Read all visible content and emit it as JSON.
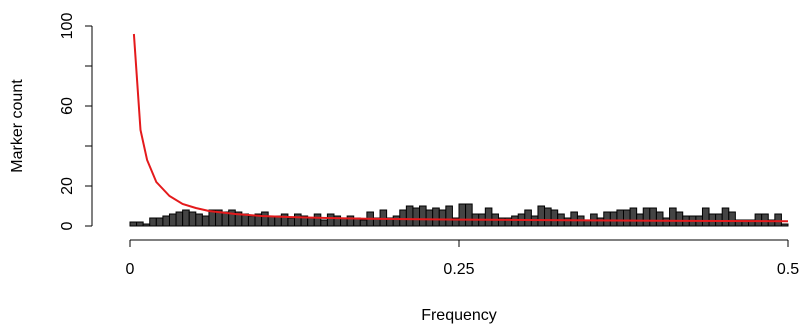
{
  "chart_data": {
    "type": "bar",
    "xlabel": "Frequency",
    "ylabel": "Marker count",
    "xlim": [
      0,
      0.5
    ],
    "ylim": [
      0,
      100
    ],
    "x_ticks": [
      0,
      0.25,
      0.5
    ],
    "x_tick_labels": [
      "0",
      "0.25",
      "0.5"
    ],
    "y_ticks": [
      0,
      20,
      60,
      100
    ],
    "y_tick_labels": [
      "0",
      "20",
      "60",
      "100"
    ],
    "bin_width": 0.005,
    "series": [
      {
        "type": "bar",
        "color": "#444444",
        "bin_start": 0,
        "values": [
          2,
          2,
          1,
          4,
          4,
          5,
          6,
          7,
          8,
          7,
          6,
          5,
          8,
          8,
          7,
          8,
          7,
          6,
          5,
          6,
          7,
          5,
          5,
          6,
          4,
          6,
          5,
          4,
          6,
          3,
          6,
          5,
          4,
          5,
          4,
          3,
          7,
          4,
          8,
          4,
          5,
          8,
          10,
          9,
          10,
          8,
          9,
          8,
          10,
          4,
          11,
          11,
          6,
          6,
          9,
          6,
          4,
          4,
          5,
          6,
          8,
          5,
          10,
          9,
          8,
          6,
          4,
          7,
          5,
          3,
          6,
          4,
          7,
          7,
          8,
          8,
          9,
          6,
          9,
          9,
          7,
          4,
          9,
          7,
          5,
          5,
          5,
          9,
          6,
          6,
          9,
          7,
          3,
          3,
          3,
          6,
          6,
          3,
          6,
          1
        ]
      },
      {
        "type": "line",
        "color": "#e41a1c",
        "x": [
          0.003,
          0.008,
          0.013,
          0.02,
          0.03,
          0.04,
          0.05,
          0.06,
          0.08,
          0.1,
          0.12,
          0.15,
          0.18,
          0.2,
          0.25,
          0.3,
          0.35,
          0.4,
          0.45,
          0.5
        ],
        "values": [
          96,
          48,
          33,
          22,
          15,
          11,
          9,
          7.5,
          6,
          5,
          4.5,
          4,
          3.6,
          3.5,
          3.2,
          3,
          2.8,
          2.6,
          2.5,
          2.4
        ]
      }
    ]
  }
}
